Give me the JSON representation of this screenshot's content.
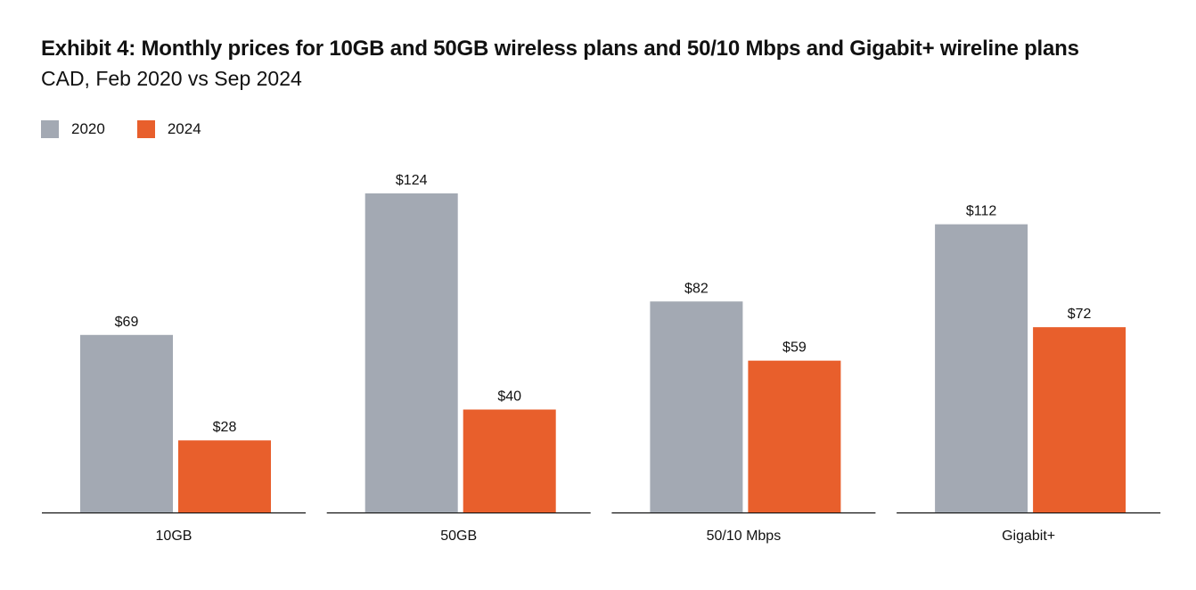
{
  "chart_data": {
    "type": "bar",
    "title": "Exhibit 4: Monthly prices for 10GB and 50GB wireless plans and 50/10 Mbps and Gigabit+ wireline plans",
    "subtitle": "CAD, Feb 2020 vs Sep 2024",
    "categories": [
      "10GB",
      "50GB",
      "50/10 Mbps",
      "Gigabit+"
    ],
    "series": [
      {
        "name": "2020",
        "color": "#a3a9b3",
        "values": [
          69,
          124,
          82,
          112
        ],
        "labels": [
          "$69",
          "$124",
          "$82",
          "$112"
        ]
      },
      {
        "name": "2024",
        "color": "#e85f2c",
        "values": [
          28,
          40,
          59,
          72
        ],
        "labels": [
          "$28",
          "$40",
          "$59",
          "$72"
        ]
      }
    ],
    "ylim": [
      0,
      124
    ],
    "grid": false,
    "legend_position": "top-left",
    "xlabel": "",
    "ylabel": ""
  }
}
